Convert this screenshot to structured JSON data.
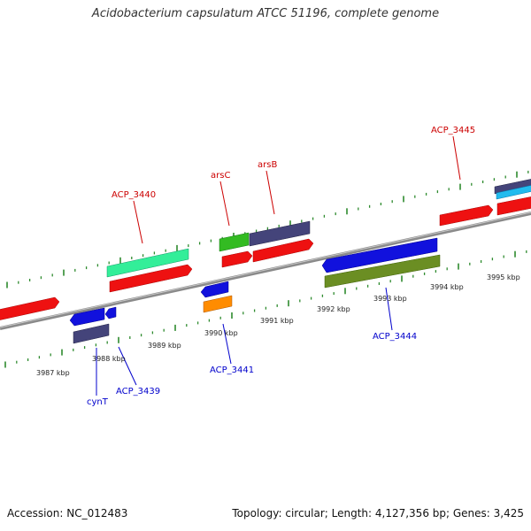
{
  "title": "Acidobacterium capsulatum ATCC 51196, complete genome",
  "accession_label": "Accession: NC_012483",
  "topology_label": "Topology: circular; Length: 4,127,356 bp; Genes: 3,425",
  "colors": {
    "backbone": "#909090",
    "tick": "#2e8b2e",
    "forward_label": "#cc0000",
    "reverse_label": "#0000cc"
  },
  "scale_labels": [
    "3987 kbp",
    "3988 kbp",
    "3989 kbp",
    "3990 kbp",
    "3991 kbp",
    "3992 kbp",
    "3993 kbp",
    "3994 kbp",
    "3995 kbp"
  ],
  "genes": [
    {
      "label": "ACP_3440",
      "strand": "forward"
    },
    {
      "label": "arsC",
      "strand": "forward"
    },
    {
      "label": "arsB",
      "strand": "forward"
    },
    {
      "label": "ACP_3445",
      "strand": "forward"
    },
    {
      "label": "ACP_3441",
      "strand": "reverse"
    },
    {
      "label": "ACP_3444",
      "strand": "reverse"
    },
    {
      "label": "ACP_3439",
      "strand": "reverse"
    },
    {
      "label": "cynT",
      "strand": "reverse"
    }
  ]
}
